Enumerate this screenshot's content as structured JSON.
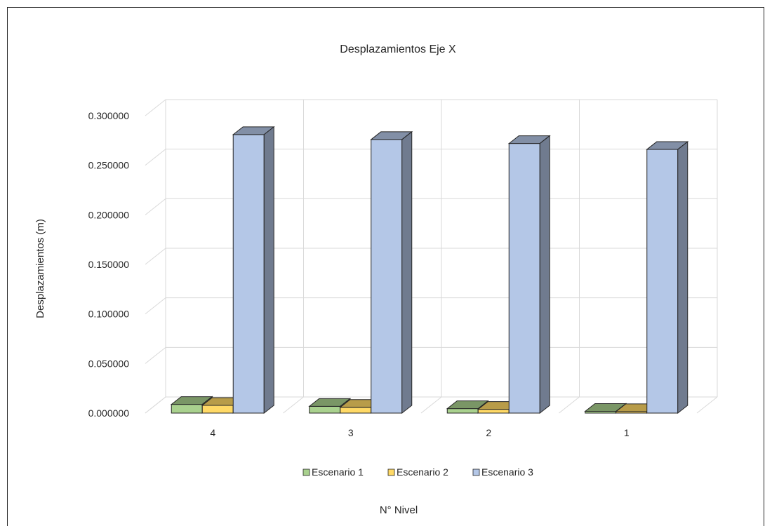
{
  "chart_data": {
    "type": "bar",
    "title": "Desplazamientos  Eje X",
    "xlabel": "N° Nivel",
    "ylabel": "Desplazamientos  (m)",
    "categories": [
      "4",
      "3",
      "2",
      "1"
    ],
    "yticks": [
      "0.000000",
      "0.050000",
      "0.100000",
      "0.150000",
      "0.200000",
      "0.250000",
      "0.300000"
    ],
    "ylim": [
      0,
      0.3
    ],
    "grid": true,
    "legend_position": "bottom",
    "series": [
      {
        "name": "Escenario 1",
        "values": [
          0.0088,
          0.0068,
          0.0045,
          0.0018
        ],
        "color": "#a9d18e"
      },
      {
        "name": "Escenario 2",
        "values": [
          0.0078,
          0.0058,
          0.0038,
          0.0015
        ],
        "color": "#ffd966"
      },
      {
        "name": "Escenario 3",
        "values": [
          0.281,
          0.276,
          0.272,
          0.266
        ],
        "color": "#b4c7e7"
      }
    ]
  }
}
